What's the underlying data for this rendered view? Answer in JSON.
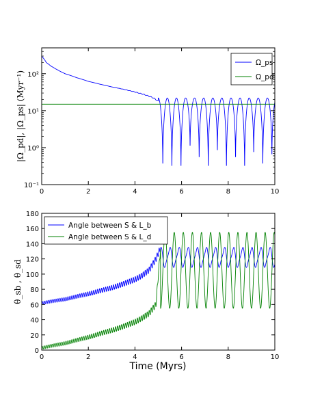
{
  "chart_data": [
    {
      "type": "line",
      "title": "",
      "xlabel": "",
      "ylabel": "|Ω_pd|, |Ω_ps| (Myr⁻¹)",
      "xlim": [
        0,
        10
      ],
      "ylim": [
        0.1,
        500
      ],
      "yscale": "log",
      "x_ticks": [
        0,
        2,
        4,
        6,
        8,
        10
      ],
      "y_ticks": [
        {
          "value": 0.1,
          "label": "10⁻¹"
        },
        {
          "value": 1,
          "label": "10⁰"
        },
        {
          "value": 10,
          "label": "10¹"
        },
        {
          "value": 100,
          "label": "10²"
        }
      ],
      "legend_position": "top-right",
      "grid": false,
      "series": [
        {
          "name": "Ω_ps",
          "color": "#0000ff",
          "description_points": {
            "x": [
              0.0,
              0.1,
              0.2,
              0.4,
              0.6,
              0.8,
              1.0,
              1.5,
              2.0,
              2.5,
              3.0,
              3.5,
              4.0,
              4.5,
              4.8,
              5.0
            ],
            "y": [
              300,
              250,
              200,
              160,
              135,
              115,
              100,
              78,
              62,
              52,
              44,
              38,
              32,
              26,
              22,
              18
            ]
          },
          "oscillation": {
            "x_start": 5.0,
            "x_end": 10.0,
            "period": 0.39,
            "peak": 22,
            "dips": [
              0.12,
              0.1,
              0.1,
              0.5,
              0.2,
              0.1,
              0.35,
              0.1,
              0.2,
              0.1,
              0.3,
              0.12,
              0.25
            ]
          }
        },
        {
          "name": "Ω_pd",
          "color": "#008000",
          "x": [
            0,
            10
          ],
          "y": [
            15,
            15
          ]
        }
      ]
    },
    {
      "type": "line",
      "title": "",
      "xlabel": "Time (Myrs)",
      "ylabel": "θ_sb , θ_sd",
      "xlim": [
        0,
        10
      ],
      "ylim": [
        0,
        180
      ],
      "x_ticks": [
        0,
        2,
        4,
        6,
        8,
        10
      ],
      "y_ticks": [
        0,
        20,
        40,
        60,
        80,
        100,
        120,
        140,
        160,
        180
      ],
      "legend_position": "top-left",
      "grid": false,
      "series": [
        {
          "name": "Angle between S & L_b",
          "color": "#0000ff",
          "pre_onset": {
            "x": [
              0,
              1,
              2,
              3,
              3.5,
              4.0,
              4.3,
              4.6,
              4.9,
              5.1
            ],
            "y": [
              62,
              67,
              74,
              82,
              87,
              93,
              98,
              105,
              120,
              135
            ]
          },
          "post_onset": {
            "x_start": 5.1,
            "x_end": 10.0,
            "mean": 122,
            "amplitude": 12,
            "period": 0.39
          }
        },
        {
          "name": "Angle between S & L_d",
          "color": "#008000",
          "pre_onset": {
            "x": [
              0,
              1,
              2,
              3,
              3.5,
              4.0,
              4.3,
              4.6,
              4.9,
              5.1
            ],
            "y": [
              3,
              9,
              17,
              26,
              31,
              37,
              42,
              48,
              60,
              135
            ]
          },
          "post_onset": {
            "x_start": 5.1,
            "x_end": 10.0,
            "mean": 105,
            "amplitude": 50,
            "period": 0.39
          }
        }
      ]
    }
  ]
}
